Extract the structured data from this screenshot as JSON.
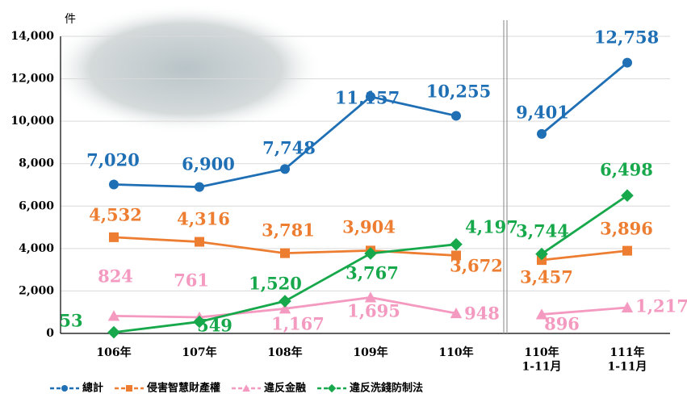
{
  "chart_data": {
    "type": "line",
    "y_unit": "件",
    "categories": [
      "106年",
      "107年",
      "108年",
      "109年",
      "110年",
      "110年\n1-11月",
      "111年\n1-11月"
    ],
    "divider_after_index": 4,
    "ylim": [
      0,
      14000
    ],
    "yticks": [
      0,
      {
        "value": 2000,
        "label": "2,000"
      },
      {
        "value": 4000,
        "label": "4,000"
      },
      {
        "value": 6000,
        "label": "6,000"
      },
      {
        "value": 8000,
        "label": "8,000"
      },
      {
        "value": 10000,
        "label": "10,000"
      },
      {
        "value": 12000,
        "label": "12,000"
      },
      {
        "value": 14000,
        "label": "14,000"
      }
    ],
    "grid": true,
    "legend": "bottom",
    "series": [
      {
        "name": "總計",
        "color": "#1f6fb5",
        "marker": "circle",
        "values": [
          7020,
          6900,
          7748,
          11157,
          10255,
          9401,
          12758
        ],
        "value_labels": [
          "7,020",
          "6,900",
          "7,748",
          "11,157",
          "10,255",
          "9,401",
          "12,758"
        ]
      },
      {
        "name": "侵害智慧財產權",
        "color": "#ed7d31",
        "marker": "square",
        "values": [
          4532,
          4316,
          3781,
          3904,
          3672,
          3457,
          3896
        ],
        "value_labels": [
          "4,532",
          "4,316",
          "3,781",
          "3,904",
          "3,672",
          "3,457",
          "3,896"
        ]
      },
      {
        "name": "違反金融",
        "color": "#f49ac1",
        "marker": "triangle",
        "values": [
          824,
          761,
          1167,
          1695,
          948,
          896,
          1217
        ],
        "value_labels": [
          "824",
          "761",
          "1,167",
          "1,695",
          "948",
          "896",
          "1,217"
        ]
      },
      {
        "name": "違反洗錢防制法",
        "color": "#16a84a",
        "marker": "diamond",
        "values": [
          53,
          549,
          1520,
          3767,
          4197,
          3744,
          6498
        ],
        "value_labels": [
          "53",
          "549",
          "1,520",
          "3,767",
          "4,197",
          "3,744",
          "6,498"
        ]
      }
    ]
  }
}
